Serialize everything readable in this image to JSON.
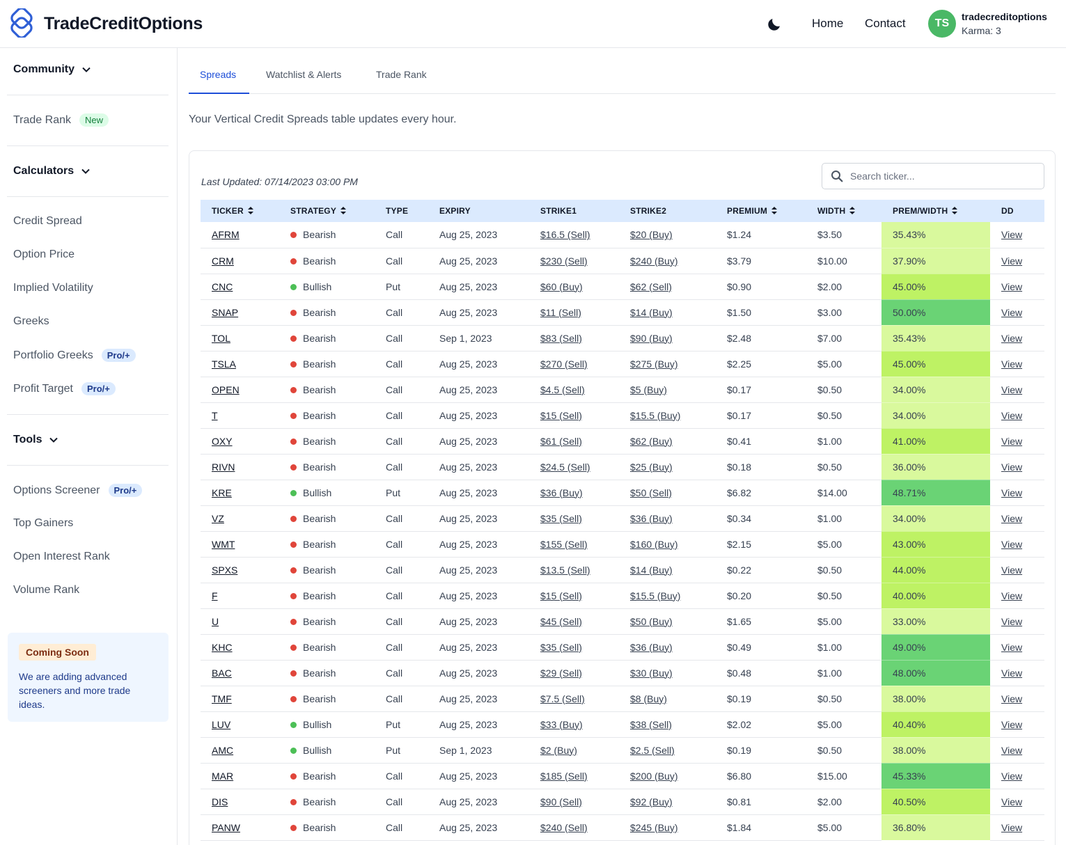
{
  "header": {
    "brand": "TradeCreditOptions",
    "nav": {
      "home": "Home",
      "contact": "Contact"
    },
    "user": {
      "initials": "TS",
      "name": "tradecreditoptions",
      "karma": "Karma: 3"
    },
    "icons": {
      "logo": "logo-icon",
      "theme": "moon-icon"
    }
  },
  "sidebar": {
    "community": "Community",
    "trade_rank": {
      "label": "Trade Rank",
      "badge": "New"
    },
    "calculators": {
      "title": "Calculators",
      "items": [
        {
          "label": "Credit Spread",
          "badge": ""
        },
        {
          "label": "Option Price",
          "badge": ""
        },
        {
          "label": "Implied Volatility",
          "badge": ""
        },
        {
          "label": "Greeks",
          "badge": ""
        },
        {
          "label": "Portfolio Greeks",
          "badge": "Pro/+"
        },
        {
          "label": "Profit Target",
          "badge": "Pro/+"
        }
      ]
    },
    "tools": {
      "title": "Tools",
      "items": [
        {
          "label": "Options Screener",
          "badge": "Pro/+"
        },
        {
          "label": "Top Gainers",
          "badge": ""
        },
        {
          "label": "Open Interest Rank",
          "badge": ""
        },
        {
          "label": "Volume Rank",
          "badge": ""
        }
      ]
    },
    "coming_soon": {
      "badge": "Coming Soon",
      "text": "We are adding advanced screeners and more trade ideas."
    }
  },
  "main": {
    "tabs": [
      "Spreads",
      "Watchlist & Alerts",
      "Trade Rank"
    ],
    "active_tab": "Spreads",
    "intro": "Your Vertical Credit Spreads table updates every hour.",
    "last_updated": "Last Updated: 07/14/2023 03:00 PM",
    "search_placeholder": "Search ticker...",
    "columns": [
      "TICKER",
      "STRATEGY",
      "TYPE",
      "EXPIRY",
      "STRIKE1",
      "STRIKE2",
      "PREMIUM",
      "WIDTH",
      "PREM/WIDTH",
      "DD"
    ],
    "sortable_columns": [
      "TICKER",
      "STRATEGY",
      "PREMIUM",
      "WIDTH",
      "PREM/WIDTH"
    ],
    "colors": {
      "bearish": "#e0453a",
      "bullish": "#4cbf56",
      "prem_low": "#d9f99d",
      "prem_mid": "#bef264",
      "prem_high": "#6ad375",
      "header_bg": "#dbeafe",
      "accent": "#1d4ed8"
    },
    "rows": [
      [
        "AFRM",
        "Bearish",
        "Call",
        "Aug 25, 2023",
        "$16.5 (Sell)",
        "$20 (Buy)",
        "$1.24",
        "$3.50",
        "35.43%",
        "View"
      ],
      [
        "CRM",
        "Bearish",
        "Call",
        "Aug 25, 2023",
        "$230 (Sell)",
        "$240 (Buy)",
        "$3.79",
        "$10.00",
        "37.90%",
        "View"
      ],
      [
        "CNC",
        "Bullish",
        "Put",
        "Aug 25, 2023",
        "$60 (Buy)",
        "$62 (Sell)",
        "$0.90",
        "$2.00",
        "45.00%",
        "View"
      ],
      [
        "SNAP",
        "Bearish",
        "Call",
        "Aug 25, 2023",
        "$11 (Sell)",
        "$14 (Buy)",
        "$1.50",
        "$3.00",
        "50.00%",
        "View"
      ],
      [
        "TOL",
        "Bearish",
        "Call",
        "Sep 1, 2023",
        "$83 (Sell)",
        "$90 (Buy)",
        "$2.48",
        "$7.00",
        "35.43%",
        "View"
      ],
      [
        "TSLA",
        "Bearish",
        "Call",
        "Aug 25, 2023",
        "$270 (Sell)",
        "$275 (Buy)",
        "$2.25",
        "$5.00",
        "45.00%",
        "View"
      ],
      [
        "OPEN",
        "Bearish",
        "Call",
        "Aug 25, 2023",
        "$4.5 (Sell)",
        "$5 (Buy)",
        "$0.17",
        "$0.50",
        "34.00%",
        "View"
      ],
      [
        "T",
        "Bearish",
        "Call",
        "Aug 25, 2023",
        "$15 (Sell)",
        "$15.5 (Buy)",
        "$0.17",
        "$0.50",
        "34.00%",
        "View"
      ],
      [
        "OXY",
        "Bearish",
        "Call",
        "Aug 25, 2023",
        "$61 (Sell)",
        "$62 (Buy)",
        "$0.41",
        "$1.00",
        "41.00%",
        "View"
      ],
      [
        "RIVN",
        "Bearish",
        "Call",
        "Aug 25, 2023",
        "$24.5 (Sell)",
        "$25 (Buy)",
        "$0.18",
        "$0.50",
        "36.00%",
        "View"
      ],
      [
        "KRE",
        "Bullish",
        "Put",
        "Aug 25, 2023",
        "$36 (Buy)",
        "$50 (Sell)",
        "$6.82",
        "$14.00",
        "48.71%",
        "View"
      ],
      [
        "VZ",
        "Bearish",
        "Call",
        "Aug 25, 2023",
        "$35 (Sell)",
        "$36 (Buy)",
        "$0.34",
        "$1.00",
        "34.00%",
        "View"
      ],
      [
        "WMT",
        "Bearish",
        "Call",
        "Aug 25, 2023",
        "$155 (Sell)",
        "$160 (Buy)",
        "$2.15",
        "$5.00",
        "43.00%",
        "View"
      ],
      [
        "SPXS",
        "Bearish",
        "Call",
        "Aug 25, 2023",
        "$13.5 (Sell)",
        "$14 (Buy)",
        "$0.22",
        "$0.50",
        "44.00%",
        "View"
      ],
      [
        "F",
        "Bearish",
        "Call",
        "Aug 25, 2023",
        "$15 (Sell)",
        "$15.5 (Buy)",
        "$0.20",
        "$0.50",
        "40.00%",
        "View"
      ],
      [
        "U",
        "Bearish",
        "Call",
        "Aug 25, 2023",
        "$45 (Sell)",
        "$50 (Buy)",
        "$1.65",
        "$5.00",
        "33.00%",
        "View"
      ],
      [
        "KHC",
        "Bearish",
        "Call",
        "Aug 25, 2023",
        "$35 (Sell)",
        "$36 (Buy)",
        "$0.49",
        "$1.00",
        "49.00%",
        "View"
      ],
      [
        "BAC",
        "Bearish",
        "Call",
        "Aug 25, 2023",
        "$29 (Sell)",
        "$30 (Buy)",
        "$0.48",
        "$1.00",
        "48.00%",
        "View"
      ],
      [
        "TMF",
        "Bearish",
        "Call",
        "Aug 25, 2023",
        "$7.5 (Sell)",
        "$8 (Buy)",
        "$0.19",
        "$0.50",
        "38.00%",
        "View"
      ],
      [
        "LUV",
        "Bullish",
        "Put",
        "Aug 25, 2023",
        "$33 (Buy)",
        "$38 (Sell)",
        "$2.02",
        "$5.00",
        "40.40%",
        "View"
      ],
      [
        "AMC",
        "Bullish",
        "Put",
        "Sep 1, 2023",
        "$2 (Buy)",
        "$2.5 (Sell)",
        "$0.19",
        "$0.50",
        "38.00%",
        "View"
      ],
      [
        "MAR",
        "Bearish",
        "Call",
        "Aug 25, 2023",
        "$185 (Sell)",
        "$200 (Buy)",
        "$6.80",
        "$15.00",
        "45.33%",
        "View"
      ],
      [
        "DIS",
        "Bearish",
        "Call",
        "Aug 25, 2023",
        "$90 (Sell)",
        "$92 (Buy)",
        "$0.81",
        "$2.00",
        "40.50%",
        "View"
      ],
      [
        "PANW",
        "Bearish",
        "Call",
        "Aug 25, 2023",
        "$240 (Sell)",
        "$245 (Buy)",
        "$1.84",
        "$5.00",
        "36.80%",
        "View"
      ]
    ]
  }
}
